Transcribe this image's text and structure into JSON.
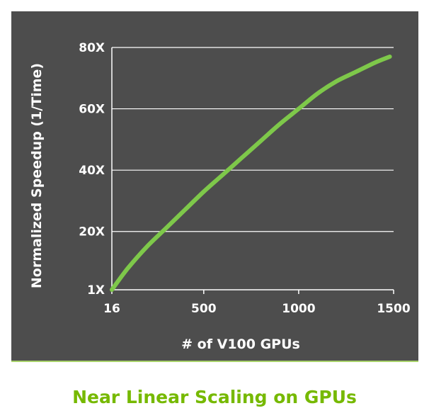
{
  "caption": "Near Linear Scaling on GPUs",
  "colors": {
    "panel_background": "#4d4d4d",
    "series_line": "#7ec84a",
    "gridline": "#ffffff",
    "caption_text": "#76b900",
    "panel_underline": "#a8d26b"
  },
  "chart_data": {
    "type": "line",
    "title": "",
    "xlabel": "# of V100 GPUs",
    "ylabel": "Normalized Speedup (1/Time)",
    "xlim": [
      16,
      1500
    ],
    "ylim": [
      1,
      80
    ],
    "x_ticks": [
      {
        "value": 16,
        "label": "16"
      },
      {
        "value": 500,
        "label": "500"
      },
      {
        "value": 1000,
        "label": "1000"
      },
      {
        "value": 1500,
        "label": "1500"
      }
    ],
    "y_ticks": [
      {
        "value": 1,
        "label": "1X"
      },
      {
        "value": 20,
        "label": "20X"
      },
      {
        "value": 40,
        "label": "40X"
      },
      {
        "value": 60,
        "label": "60X"
      },
      {
        "value": 80,
        "label": "80X"
      }
    ],
    "grid": "horizontal",
    "legend": "none",
    "series": [
      {
        "x": [
          16,
          100,
          200,
          300,
          400,
          500,
          600,
          700,
          800,
          900,
          1000,
          1100,
          1200,
          1300,
          1400,
          1480
        ],
        "y": [
          1,
          8,
          15,
          21,
          27,
          33,
          38.5,
          44,
          49.5,
          55,
          60,
          65,
          69,
          72,
          75,
          77
        ]
      }
    ]
  }
}
